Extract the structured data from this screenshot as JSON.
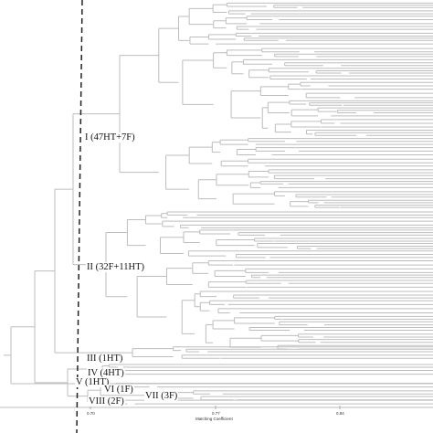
{
  "clusters": [
    {
      "id": "I",
      "label": "I (47HT+7F)"
    },
    {
      "id": "II",
      "label": "II (32F+11HT)"
    },
    {
      "id": "III",
      "label": "III (1HT)"
    },
    {
      "id": "IV",
      "label": "IV (4HT)"
    },
    {
      "id": "V",
      "label": "V (1HT)"
    },
    {
      "id": "VI",
      "label": "VI (1F)"
    },
    {
      "id": "VII",
      "label": "VII (3F)"
    },
    {
      "id": "VIII",
      "label": "VIII (2F)"
    }
  ],
  "axis": {
    "title": "Matching Coefficient",
    "ticks": [
      "0.70",
      "0.77",
      "0.84"
    ]
  },
  "colors": {
    "line": "#bdbdbd",
    "cut_line": "#222222",
    "text": "#111111"
  }
}
